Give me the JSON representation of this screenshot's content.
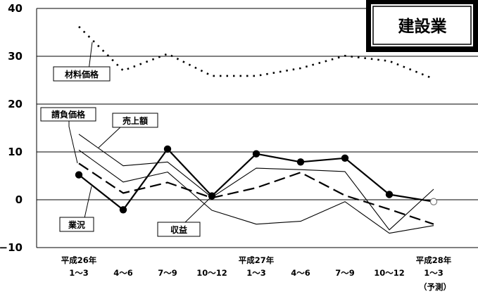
{
  "chart_data": {
    "type": "line",
    "title": "建設業",
    "ylim": [
      -10,
      40
    ],
    "yticks": [
      "40",
      "30",
      "20",
      "10",
      "0",
      "−10"
    ],
    "grid": true,
    "x_labels": [
      {
        "line1": "平成26年",
        "line2": "1〜3"
      },
      {
        "line1": "",
        "line2": "4〜6"
      },
      {
        "line1": "",
        "line2": "7〜9"
      },
      {
        "line1": "",
        "line2": "10〜12"
      },
      {
        "line1": "平成27年",
        "line2": "1〜3"
      },
      {
        "line1": "",
        "line2": "4〜6"
      },
      {
        "line1": "",
        "line2": "7〜9"
      },
      {
        "line1": "",
        "line2": "10〜12"
      },
      {
        "line1": "平成28年",
        "line2": "1〜3"
      }
    ],
    "forecast_note": "（予測）",
    "series": [
      {
        "name": "材料価格",
        "style": "dotted",
        "values": [
          36.2,
          27,
          30.5,
          25.9,
          25.9,
          27.5,
          30.1,
          29,
          25.3
        ]
      },
      {
        "name": "売上額",
        "style": "thin",
        "values": [
          13.7,
          7.1,
          7.9,
          0.5,
          6.6,
          6.3,
          5.9,
          -6.3,
          2.2
        ]
      },
      {
        "name": "請負価格",
        "style": "thin",
        "values": [
          10.4,
          3.7,
          5.8,
          -2.2,
          -5.1,
          -4.5,
          -0.4,
          -7,
          -5.4
        ]
      },
      {
        "name": "収益",
        "style": "dashed",
        "values": [
          7.6,
          1.4,
          3.6,
          0.4,
          2.5,
          5.7,
          0.9,
          -2,
          -5.1
        ]
      },
      {
        "name": "業況",
        "style": "bold-markers",
        "values": [
          5.2,
          -2.1,
          10.6,
          0.8,
          9.6,
          7.9,
          8.7,
          1.1,
          -0.4
        ]
      }
    ],
    "labels": {
      "material": "材料価格",
      "contract": "請負価格",
      "sales": "売上額",
      "business": "業況",
      "profit": "収益"
    }
  }
}
